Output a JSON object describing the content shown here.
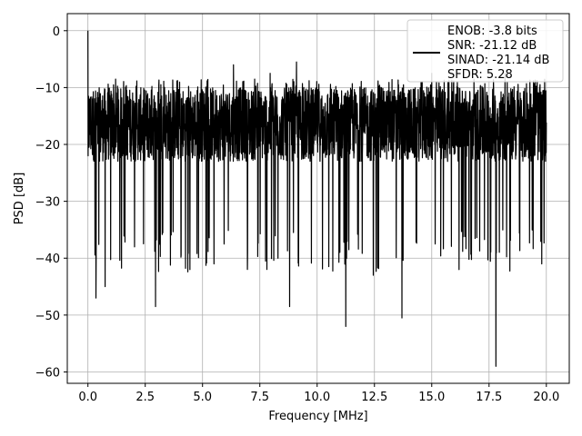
{
  "chart_data": {
    "type": "line",
    "xlabel": "Frequency [MHz]",
    "ylabel": "PSD [dB]",
    "xlim": [
      -0.9,
      21.0
    ],
    "ylim": [
      -62.0,
      3.0
    ],
    "xticks": [
      0.0,
      2.5,
      5.0,
      7.5,
      10.0,
      12.5,
      15.0,
      17.5,
      20.0
    ],
    "xtick_labels": [
      "0.0",
      "2.5",
      "5.0",
      "7.5",
      "10.0",
      "12.5",
      "15.0",
      "17.5",
      "20.0"
    ],
    "yticks": [
      0,
      -10,
      -20,
      -30,
      -40,
      -50,
      -60
    ],
    "ytick_labels": [
      "0",
      "−10",
      "−20",
      "−30",
      "−40",
      "−50",
      "−60"
    ],
    "grid": true,
    "legend_position": "top-right",
    "series": [
      {
        "name": "ENOB: -3.8 bits\nSNR: -21.12 dB\nSINAD: -21.14 dB\nSFDR: 5.28",
        "color": "#000000",
        "legend_lines": [
          "ENOB: -3.8 bits",
          "SNR: -21.12 dB",
          "SINAD: -21.14 dB",
          "SFDR: 5.28"
        ],
        "x_range": [
          0.0,
          20.0
        ],
        "peak": {
          "x": 0.0,
          "y": 0.0
        },
        "noise_floor_band": [
          -30,
          -10
        ],
        "notable_dips": [
          {
            "x": 0.35,
            "y": -47
          },
          {
            "x": 0.75,
            "y": -45
          },
          {
            "x": 2.95,
            "y": -48.5
          },
          {
            "x": 4.45,
            "y": -42
          },
          {
            "x": 5.5,
            "y": -41
          },
          {
            "x": 7.75,
            "y": -40.5
          },
          {
            "x": 8.8,
            "y": -48.5
          },
          {
            "x": 11.25,
            "y": -52
          },
          {
            "x": 12.45,
            "y": -43
          },
          {
            "x": 13.7,
            "y": -50.5
          },
          {
            "x": 17.8,
            "y": -59
          },
          {
            "x": 19.8,
            "y": -41
          }
        ],
        "notable_spikes": [
          {
            "x": 6.35,
            "y": -6
          },
          {
            "x": 7.95,
            "y": -7.5
          },
          {
            "x": 9.1,
            "y": -5.5
          },
          {
            "x": 15.0,
            "y": -7.5
          },
          {
            "x": 18.2,
            "y": -7.5
          }
        ]
      }
    ]
  }
}
